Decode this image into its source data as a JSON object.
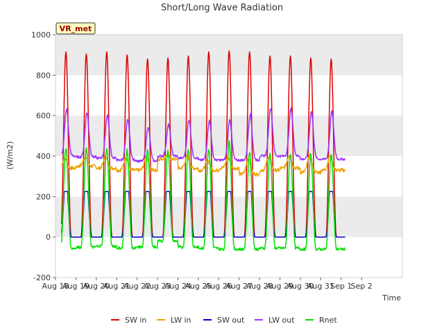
{
  "chart_data": {
    "type": "line",
    "title": "Short/Long Wave Radiation",
    "xlabel": "Time",
    "ylabel": "(W/m2)",
    "badge": "VR_met",
    "ylim": [
      -200,
      1000
    ],
    "yticks": [
      -200,
      0,
      200,
      400,
      600,
      800,
      1000
    ],
    "xlim_days": [
      18,
      35
    ],
    "xtick_labels": [
      "Aug 18",
      "Aug 19",
      "Aug 20",
      "Aug 21",
      "Aug 22",
      "Aug 23",
      "Aug 24",
      "Aug 25",
      "Aug 26",
      "Aug 27",
      "Aug 28",
      "Aug 29",
      "Aug 30",
      "Aug 31",
      "Sep 1",
      "Sep 2"
    ],
    "data_range_days": [
      18.3,
      32.2
    ],
    "grid": "horizontal bands",
    "legend_position": "bottom",
    "background_colors": {
      "band": "#ebebeb",
      "plot": "#ffffff"
    },
    "series": [
      {
        "name": "SW in",
        "color": "#e00000",
        "daily_peaks": [
          915,
          905,
          915,
          900,
          880,
          885,
          895,
          915,
          920,
          915,
          895,
          895,
          885,
          880
        ]
      },
      {
        "name": "LW in",
        "color": "#f0a000",
        "daily_night_values": [
          340,
          350,
          340,
          330,
          330,
          385,
          340,
          330,
          340,
          310,
          330,
          340,
          320,
          330
        ],
        "daily_peaks": [
          390,
          395,
          395,
          395,
          400,
          405,
          400,
          380,
          395,
          390,
          400,
          405,
          405,
          400
        ]
      },
      {
        "name": "SW out",
        "color": "#0000cc",
        "daily_peaks": [
          225,
          225,
          225,
          225,
          225,
          225,
          225,
          225,
          225,
          225,
          225,
          225,
          225,
          225
        ]
      },
      {
        "name": "LW out",
        "color": "#9b30ff",
        "daily_night_values": [
          400,
          395,
          390,
          380,
          375,
          400,
          390,
          380,
          380,
          380,
          400,
          400,
          385,
          385
        ],
        "daily_peaks": [
          630,
          615,
          605,
          580,
          545,
          555,
          580,
          575,
          580,
          605,
          640,
          635,
          620,
          620
        ]
      },
      {
        "name": "Rnet",
        "color": "#00e000",
        "daily_night_values": [
          -55,
          -50,
          -45,
          -55,
          -50,
          -20,
          -50,
          -55,
          -60,
          -60,
          -55,
          -55,
          -60,
          -60
        ],
        "daily_peaks": [
          440,
          435,
          435,
          430,
          435,
          430,
          435,
          435,
          470,
          420,
          410,
          410,
          405,
          410
        ]
      }
    ]
  }
}
